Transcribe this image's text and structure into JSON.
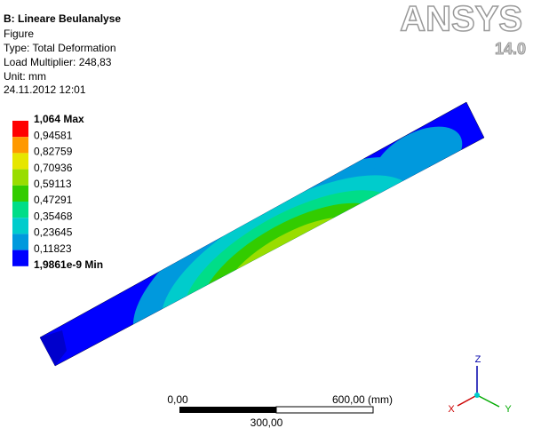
{
  "header": {
    "title": "B: Lineare Beulanalyse",
    "lines": [
      "Figure",
      "Type: Total Deformation",
      "Load Multiplier: 248,83",
      "Unit: mm",
      "24.11.2012 12:01"
    ]
  },
  "legend": {
    "labels": [
      "1,064 Max",
      "0,94581",
      "0,82759",
      "0,70936",
      "0,59113",
      "0,47291",
      "0,35468",
      "0,23645",
      "0,11823",
      "1,9861e-9 Min"
    ],
    "colors": [
      "#ff0000",
      "#ff9900",
      "#e6e600",
      "#99dd00",
      "#33cc00",
      "#00dd88",
      "#00cccc",
      "#0099dd",
      "#0000ff"
    ]
  },
  "logo": {
    "brand": "ANSYS",
    "version": "14.0"
  },
  "scale_bar": {
    "start": "0,00",
    "end": "600,00 (mm)",
    "middle": "300,00"
  },
  "triad": {
    "z": "Z",
    "x": "X",
    "y": "Y"
  }
}
